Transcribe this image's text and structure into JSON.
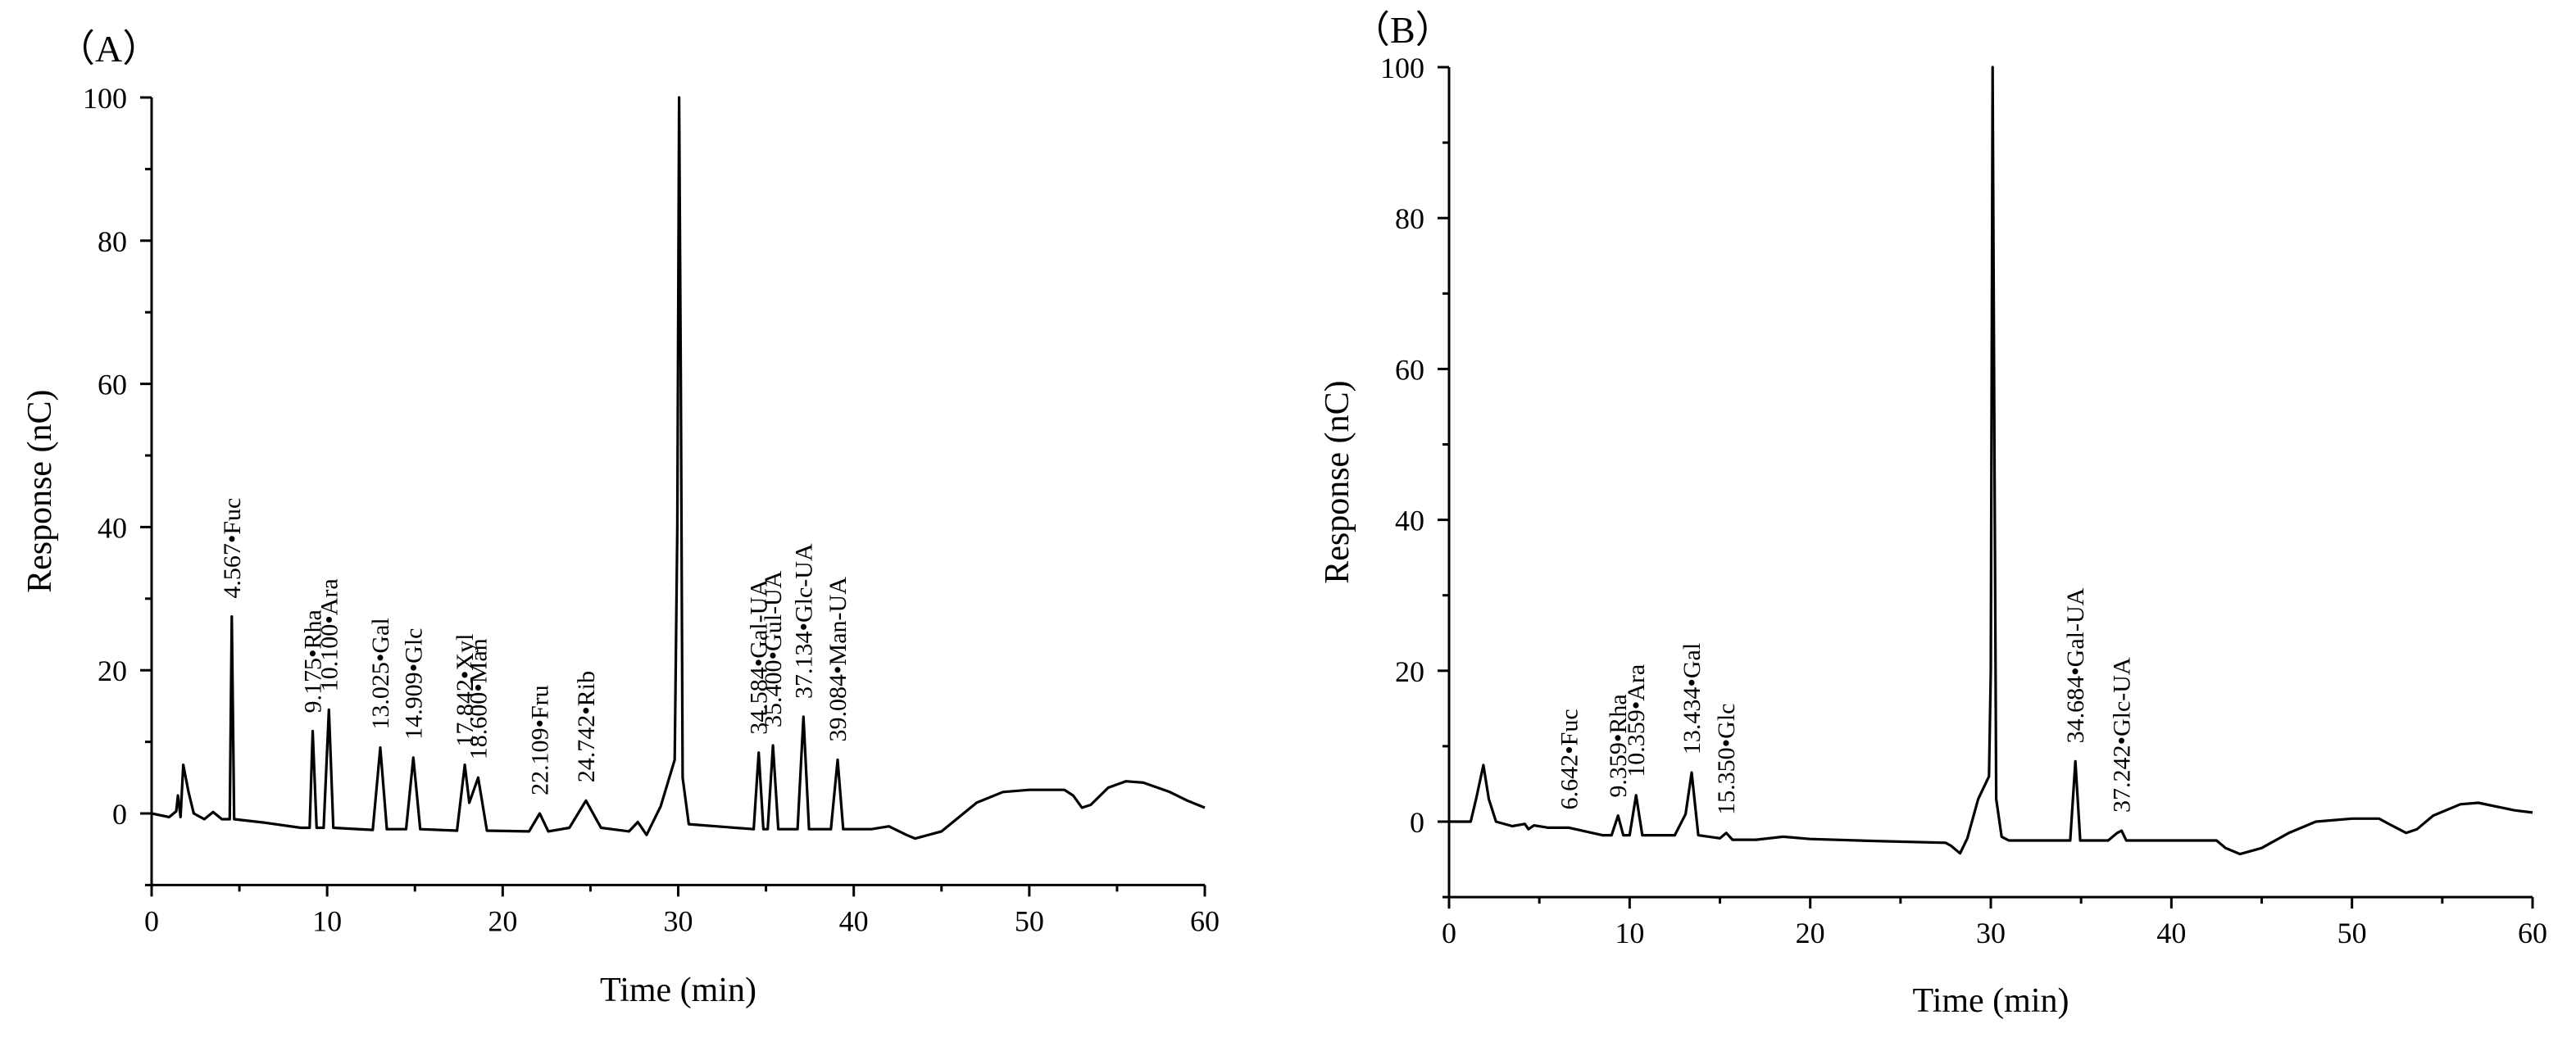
{
  "chart_data": [
    {
      "type": "line",
      "panel_label": "（A）",
      "title": "",
      "xlabel": "Time (min)",
      "ylabel": "Response (nC)",
      "xlim": [
        0,
        60
      ],
      "ylim": [
        -10,
        100
      ],
      "xticks": [
        0,
        10,
        20,
        30,
        40,
        50,
        60
      ],
      "yticks": [
        0,
        20,
        40,
        60,
        80,
        100
      ],
      "trace_points": [
        [
          0,
          0
        ],
        [
          1.0,
          -0.5
        ],
        [
          1.4,
          0.3
        ],
        [
          1.5,
          2.5
        ],
        [
          1.65,
          -0.5
        ],
        [
          1.8,
          6.8
        ],
        [
          2.1,
          3
        ],
        [
          2.4,
          0
        ],
        [
          3.0,
          -0.8
        ],
        [
          3.5,
          0.2
        ],
        [
          4.0,
          -0.8
        ],
        [
          4.45,
          -0.8
        ],
        [
          4.567,
          27.5
        ],
        [
          4.7,
          -0.8
        ],
        [
          6.5,
          -1.3
        ],
        [
          8.5,
          -2.0
        ],
        [
          9.0,
          -2.0
        ],
        [
          9.175,
          11.5
        ],
        [
          9.4,
          -2.0
        ],
        [
          9.8,
          -2.0
        ],
        [
          10.1,
          14.5
        ],
        [
          10.35,
          -2.0
        ],
        [
          12.6,
          -2.3
        ],
        [
          13.025,
          9.2
        ],
        [
          13.4,
          -2.2
        ],
        [
          14.5,
          -2.2
        ],
        [
          14.909,
          7.8
        ],
        [
          15.3,
          -2.2
        ],
        [
          17.4,
          -2.4
        ],
        [
          17.842,
          6.8
        ],
        [
          18.1,
          1.5
        ],
        [
          18.6,
          5.0
        ],
        [
          19.1,
          -2.4
        ],
        [
          21.5,
          -2.5
        ],
        [
          22.109,
          0.0
        ],
        [
          22.6,
          -2.5
        ],
        [
          23.8,
          -2.0
        ],
        [
          24.742,
          1.8
        ],
        [
          25.6,
          -2.0
        ],
        [
          27.2,
          -2.5
        ],
        [
          27.7,
          -1.2
        ],
        [
          28.2,
          -3.0
        ],
        [
          29.0,
          1.0
        ],
        [
          29.8,
          7.5
        ],
        [
          29.95,
          40
        ],
        [
          30.05,
          100
        ],
        [
          30.15,
          60
        ],
        [
          30.25,
          5
        ],
        [
          30.6,
          -1.5
        ],
        [
          34.3,
          -2.2
        ],
        [
          34.584,
          8.5
        ],
        [
          34.85,
          -2.2
        ],
        [
          35.1,
          -2.2
        ],
        [
          35.4,
          9.5
        ],
        [
          35.7,
          -2.2
        ],
        [
          36.8,
          -2.2
        ],
        [
          37.134,
          13.5
        ],
        [
          37.45,
          -2.2
        ],
        [
          38.7,
          -2.2
        ],
        [
          39.084,
          7.5
        ],
        [
          39.4,
          -2.2
        ],
        [
          41.0,
          -2.2
        ],
        [
          42.0,
          -1.8
        ],
        [
          43.0,
          -3.0
        ],
        [
          43.5,
          -3.5
        ],
        [
          45.0,
          -2.5
        ],
        [
          47.0,
          1.5
        ],
        [
          48.5,
          3.0
        ],
        [
          50.0,
          3.3
        ],
        [
          52.0,
          3.3
        ],
        [
          52.5,
          2.5
        ],
        [
          53.0,
          0.8
        ],
        [
          53.5,
          1.2
        ],
        [
          54.5,
          3.6
        ],
        [
          55.5,
          4.5
        ],
        [
          56.5,
          4.3
        ],
        [
          58.0,
          3.0
        ],
        [
          59.0,
          1.8
        ],
        [
          60,
          0.8
        ]
      ],
      "peak_labels": [
        {
          "time": 4.567,
          "top": 27.5,
          "text": "4.567•Fuc"
        },
        {
          "time": 9.175,
          "top": 11.5,
          "text": "9.175•Rha"
        },
        {
          "time": 10.1,
          "top": 14.5,
          "text": "10.100•Ara"
        },
        {
          "time": 13.025,
          "top": 9.2,
          "text": "13.025•Gal"
        },
        {
          "time": 14.909,
          "top": 7.8,
          "text": "14.909•Glc"
        },
        {
          "time": 17.842,
          "top": 6.8,
          "text": "17.842•Xyl"
        },
        {
          "time": 18.6,
          "top": 5.0,
          "text": "18.600•Man"
        },
        {
          "time": 22.109,
          "top": 0.0,
          "text": "22.109•Fru"
        },
        {
          "time": 24.742,
          "top": 1.8,
          "text": "24.742•Rib"
        },
        {
          "time": 34.584,
          "top": 8.5,
          "text": "34.584•Gal-UA"
        },
        {
          "time": 35.4,
          "top": 9.5,
          "text": "35.400•Gul-UA"
        },
        {
          "time": 37.134,
          "top": 13.5,
          "text": "37.134•Glc-UA"
        },
        {
          "time": 39.084,
          "top": 7.5,
          "text": "39.084•Man-UA"
        }
      ]
    },
    {
      "type": "line",
      "panel_label": "（B）",
      "title": "",
      "xlabel": "Time (min)",
      "ylabel": "Response (nC)",
      "xlim": [
        0,
        60
      ],
      "ylim": [
        -10,
        100
      ],
      "xticks": [
        0,
        10,
        20,
        30,
        40,
        50,
        60
      ],
      "yticks": [
        0,
        20,
        40,
        60,
        80,
        100
      ],
      "trace_points": [
        [
          0,
          0
        ],
        [
          1.2,
          0
        ],
        [
          1.5,
          3.0
        ],
        [
          1.9,
          7.5
        ],
        [
          2.2,
          3.0
        ],
        [
          2.6,
          0
        ],
        [
          3.5,
          -0.6
        ],
        [
          4.2,
          -0.3
        ],
        [
          4.4,
          -1.0
        ],
        [
          4.7,
          -0.5
        ],
        [
          5.5,
          -0.8
        ],
        [
          6.642,
          -0.8
        ],
        [
          8.5,
          -1.8
        ],
        [
          9.0,
          -1.8
        ],
        [
          9.359,
          0.8
        ],
        [
          9.65,
          -1.8
        ],
        [
          10.0,
          -1.8
        ],
        [
          10.359,
          3.5
        ],
        [
          10.7,
          -1.8
        ],
        [
          12.5,
          -1.8
        ],
        [
          13.1,
          1.0
        ],
        [
          13.434,
          6.5
        ],
        [
          13.8,
          -1.8
        ],
        [
          15.0,
          -2.2
        ],
        [
          15.35,
          -1.5
        ],
        [
          15.7,
          -2.4
        ],
        [
          17.0,
          -2.4
        ],
        [
          18.5,
          -2.0
        ],
        [
          20.0,
          -2.3
        ],
        [
          24.0,
          -2.6
        ],
        [
          27.5,
          -2.8
        ],
        [
          27.8,
          -3.2
        ],
        [
          28.3,
          -4.2
        ],
        [
          28.7,
          -2.2
        ],
        [
          29.3,
          3.0
        ],
        [
          29.9,
          6.0
        ],
        [
          30.0,
          20
        ],
        [
          30.1,
          100
        ],
        [
          30.2,
          50
        ],
        [
          30.3,
          3
        ],
        [
          30.6,
          -2.0
        ],
        [
          31.0,
          -2.5
        ],
        [
          33.5,
          -2.5
        ],
        [
          34.4,
          -2.5
        ],
        [
          34.684,
          8.0
        ],
        [
          34.95,
          -2.5
        ],
        [
          36.5,
          -2.5
        ],
        [
          37.0,
          -1.5
        ],
        [
          37.242,
          -1.2
        ],
        [
          37.5,
          -2.5
        ],
        [
          40.0,
          -2.5
        ],
        [
          42.5,
          -2.5
        ],
        [
          43.0,
          -3.5
        ],
        [
          43.8,
          -4.3
        ],
        [
          45.0,
          -3.5
        ],
        [
          46.5,
          -1.5
        ],
        [
          48.0,
          0.0
        ],
        [
          50.0,
          0.4
        ],
        [
          51.5,
          0.4
        ],
        [
          52.2,
          -0.5
        ],
        [
          53.0,
          -1.5
        ],
        [
          53.6,
          -1.0
        ],
        [
          54.5,
          0.8
        ],
        [
          56.0,
          2.3
        ],
        [
          57.0,
          2.5
        ],
        [
          59.0,
          1.5
        ],
        [
          60,
          1.2
        ]
      ],
      "peak_labels": [
        {
          "time": 6.642,
          "top": -0.8,
          "text": "6.642•Fuc"
        },
        {
          "time": 9.359,
          "top": 0.8,
          "text": "9.359•Rha"
        },
        {
          "time": 10.359,
          "top": 3.5,
          "text": "10.359•Ara"
        },
        {
          "time": 13.434,
          "top": 6.5,
          "text": "13.434•Gal"
        },
        {
          "time": 15.35,
          "top": -1.5,
          "text": "15.350•Glc"
        },
        {
          "time": 34.684,
          "top": 8.0,
          "text": "34.684•Gal-UA"
        },
        {
          "time": 37.242,
          "top": -1.2,
          "text": "37.242•Glc-UA"
        }
      ]
    }
  ]
}
